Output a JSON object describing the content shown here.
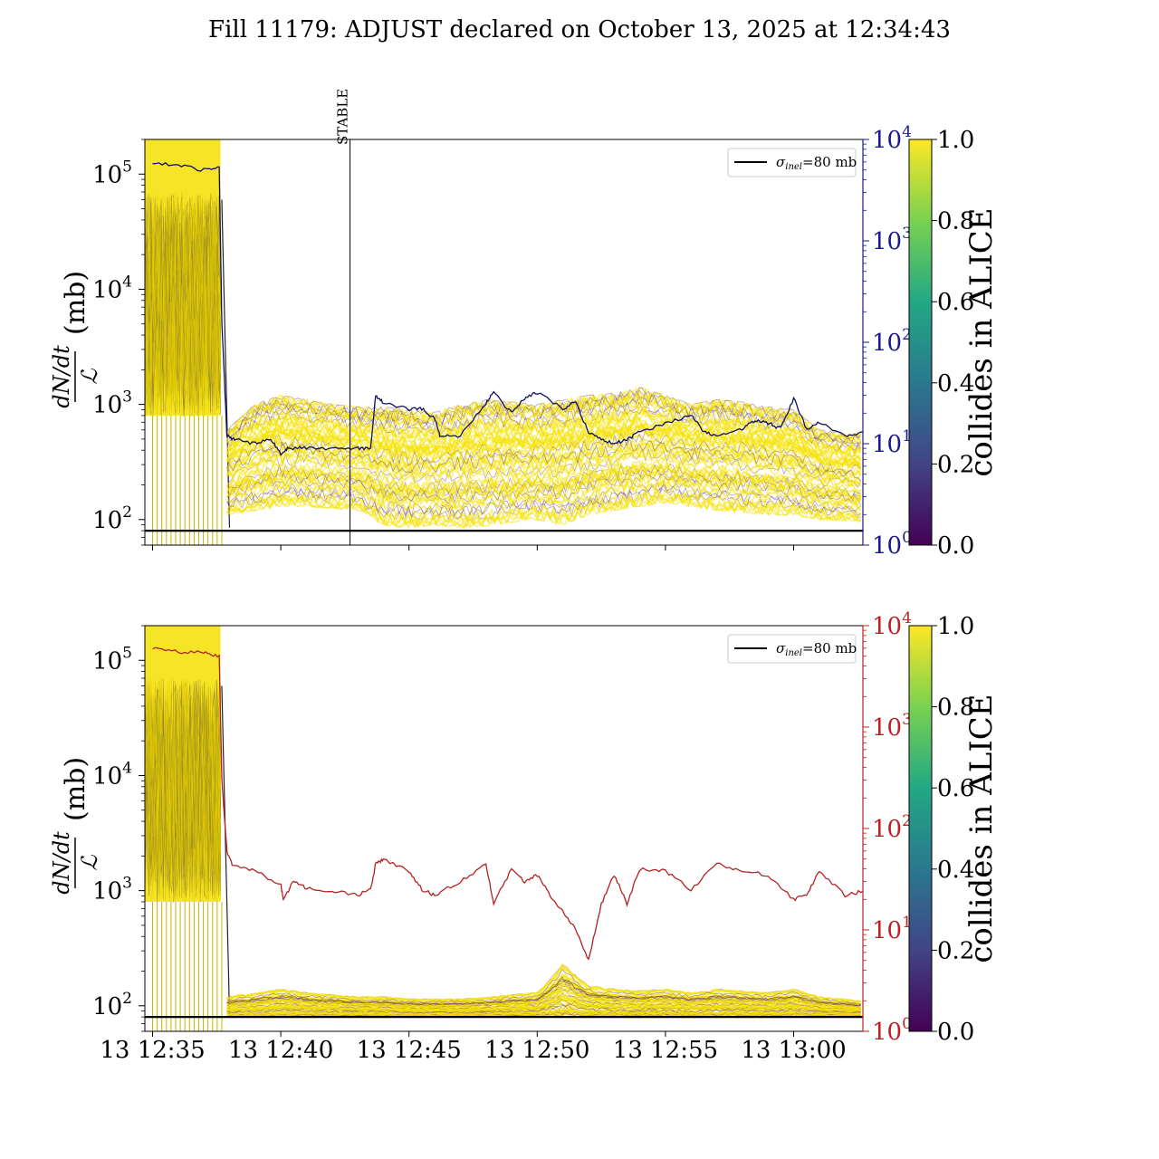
{
  "figure": {
    "title": "Fill 11179: ADJUST declared on October 13, 2025 at 12:34:43"
  },
  "colors": {
    "top_right_axis": "#1a1a8c",
    "top_series": "#101060",
    "bottom_right_axis": "#c02020",
    "bottom_series": "#b22222",
    "sigma_line": "#000000",
    "band_yellow": "#f5e100",
    "band_purple": "#5a2c7a"
  },
  "chart_data": [
    {
      "type": "line",
      "panel": "top",
      "ylabel_fraction_numerator": "dN/dt",
      "ylabel_fraction_denominator": "ℒ",
      "ylabel_unit": "(mb)",
      "yscale": "log",
      "ylim": [
        60,
        200000
      ],
      "left_ticks": [
        {
          "base": "10",
          "exp": "2",
          "value": 100
        },
        {
          "base": "10",
          "exp": "3",
          "value": 1000
        },
        {
          "base": "10",
          "exp": "4",
          "value": 10000
        },
        {
          "base": "10",
          "exp": "5",
          "value": 100000
        }
      ],
      "right_axis": {
        "yscale": "log",
        "ylim": [
          1,
          10000
        ],
        "ticks": [
          {
            "base": "10",
            "exp": "0",
            "value": 1
          },
          {
            "base": "10",
            "exp": "1",
            "value": 10
          },
          {
            "base": "10",
            "exp": "2",
            "value": 100
          },
          {
            "base": "10",
            "exp": "3",
            "value": 1000
          },
          {
            "base": "10",
            "exp": "4",
            "value": 10000
          }
        ]
      },
      "xlim_minutes": [
        -0.3,
        27.7
      ],
      "x_ticks": [
        "13 12:35",
        "13 12:40",
        "13 12:45",
        "13 12:50",
        "13 12:55",
        "13 13:00"
      ],
      "annotation": {
        "text": "STABLE",
        "x_minutes": 7.7
      },
      "legend": {
        "label_main": "σ",
        "label_sub": "inel",
        "label_rest": "=80 mb",
        "position": "upper right"
      },
      "sigma_inel_mb": 80,
      "series_right": {
        "x_minutes": [
          0,
          1,
          2,
          2.6,
          2.7,
          2.9,
          3.2,
          4,
          4.6,
          5,
          5.3,
          6,
          7,
          8,
          8.5,
          8.7,
          9,
          10,
          10.5,
          11,
          11.2,
          12,
          13,
          13.3,
          14,
          14.5,
          15,
          16,
          16.5,
          17,
          17.5,
          18,
          18.5,
          19,
          20,
          21,
          21.5,
          22,
          23,
          23.5,
          24,
          24.5,
          25,
          25.5,
          26,
          27,
          27.7
        ],
        "values": [
          6000,
          5500,
          5000,
          5200,
          160,
          12,
          11,
          10,
          11,
          8,
          9,
          9,
          9,
          9,
          9,
          30,
          25,
          22,
          22,
          18,
          12,
          12,
          25,
          32,
          20,
          28,
          32,
          22,
          26,
          13,
          11,
          10,
          11,
          13,
          16,
          19,
          13,
          12,
          14,
          17,
          16,
          14,
          28,
          14,
          16,
          12,
          13
        ]
      },
      "band_envelope": {
        "x_minutes": [
          2.9,
          4,
          5,
          6,
          7,
          8,
          9,
          10,
          11,
          12,
          13,
          14,
          15,
          16,
          17,
          18,
          19,
          20,
          21,
          22,
          23,
          24,
          25,
          26,
          27.7
        ],
        "upper": [
          600,
          1000,
          1200,
          1100,
          1000,
          950,
          950,
          900,
          850,
          1000,
          1100,
          1050,
          1000,
          1100,
          1200,
          1250,
          1400,
          1200,
          1000,
          1100,
          1050,
          950,
          900,
          600,
          550
        ],
        "lower": [
          110,
          120,
          130,
          130,
          125,
          120,
          90,
          85,
          90,
          85,
          88,
          95,
          100,
          90,
          110,
          120,
          130,
          140,
          130,
          120,
          115,
          110,
          110,
          100,
          95
        ]
      },
      "colorbar": {
        "label": "collides in ALICE",
        "ticks": [
          "0.0",
          "0.2",
          "0.4",
          "0.6",
          "0.8",
          "1.0"
        ],
        "range": [
          0,
          1
        ]
      }
    },
    {
      "type": "line",
      "panel": "bottom",
      "ylabel_fraction_numerator": "dN/dt",
      "ylabel_fraction_denominator": "ℒ",
      "ylabel_unit": "(mb)",
      "yscale": "log",
      "ylim": [
        60,
        200000
      ],
      "left_ticks": [
        {
          "base": "10",
          "exp": "2",
          "value": 100
        },
        {
          "base": "10",
          "exp": "3",
          "value": 1000
        },
        {
          "base": "10",
          "exp": "4",
          "value": 10000
        },
        {
          "base": "10",
          "exp": "5",
          "value": 100000
        }
      ],
      "right_axis": {
        "yscale": "log",
        "ylim": [
          1,
          10000
        ],
        "ticks": [
          {
            "base": "10",
            "exp": "0",
            "value": 1
          },
          {
            "base": "10",
            "exp": "1",
            "value": 10
          },
          {
            "base": "10",
            "exp": "2",
            "value": 100
          },
          {
            "base": "10",
            "exp": "3",
            "value": 1000
          },
          {
            "base": "10",
            "exp": "4",
            "value": 10000
          }
        ]
      },
      "xlim_minutes": [
        -0.3,
        27.7
      ],
      "x_ticks": [
        "13 12:35",
        "13 12:40",
        "13 12:45",
        "13 12:50",
        "13 12:55",
        "13 13:00"
      ],
      "legend": {
        "label_main": "σ",
        "label_sub": "inel",
        "label_rest": "=80 mb",
        "position": "upper right"
      },
      "sigma_inel_mb": 80,
      "series_right": {
        "x_minutes": [
          0,
          1,
          2,
          2.6,
          2.7,
          2.9,
          3.1,
          4,
          5,
          5.1,
          5.5,
          6,
          7,
          8,
          8.5,
          8.7,
          9,
          10,
          10.5,
          11,
          12,
          13,
          13.3,
          14,
          14.5,
          15,
          15.5,
          16,
          16.5,
          17,
          17.5,
          18,
          18.5,
          19,
          20,
          21,
          22,
          23,
          24,
          25,
          25.5,
          26,
          27,
          27.7
        ],
        "values": [
          6000,
          5500,
          5400,
          5000,
          300,
          60,
          45,
          38,
          28,
          20,
          30,
          26,
          24,
          22,
          25,
          45,
          50,
          38,
          25,
          22,
          30,
          45,
          18,
          40,
          30,
          35,
          22,
          15,
          10,
          5,
          18,
          35,
          18,
          40,
          38,
          25,
          45,
          38,
          35,
          20,
          22,
          38,
          22,
          24
        ]
      },
      "band_envelope": {
        "x_minutes": [
          2.9,
          4,
          5,
          6,
          7,
          8,
          9,
          10,
          11,
          12,
          13,
          14,
          15,
          15.5,
          16,
          17,
          18,
          19,
          20,
          21,
          22,
          23,
          24,
          25,
          26,
          27.7
        ],
        "upper": [
          120,
          130,
          140,
          130,
          125,
          120,
          120,
          115,
          115,
          115,
          118,
          125,
          130,
          170,
          230,
          150,
          140,
          135,
          140,
          130,
          140,
          135,
          130,
          140,
          120,
          110
        ],
        "lower": [
          80,
          80,
          82,
          82,
          82,
          82,
          82,
          81,
          81,
          81,
          82,
          82,
          82,
          82,
          83,
          82,
          82,
          82,
          82,
          82,
          82,
          82,
          82,
          82,
          82,
          82
        ]
      },
      "colorbar": {
        "label": "collides in ALICE",
        "ticks": [
          "0.0",
          "0.2",
          "0.4",
          "0.6",
          "0.8",
          "1.0"
        ],
        "range": [
          0,
          1
        ]
      }
    }
  ]
}
